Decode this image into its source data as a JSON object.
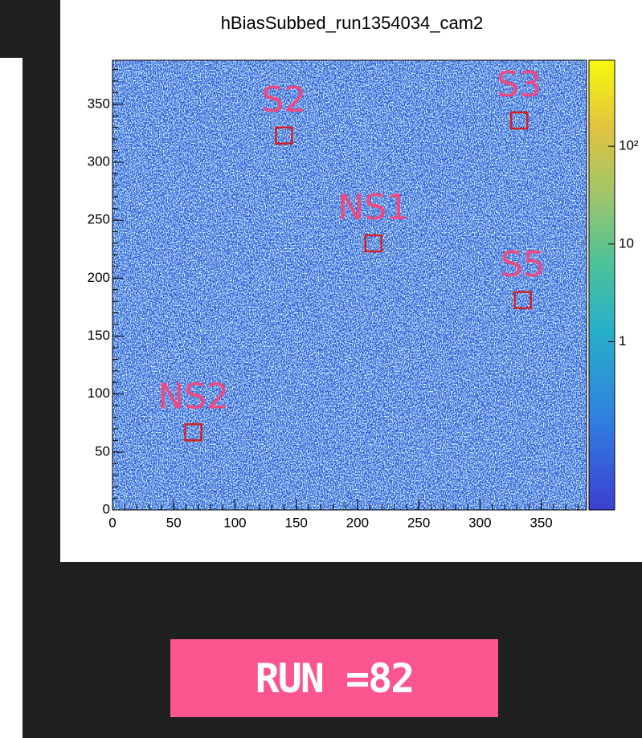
{
  "chart_data": {
    "type": "heatmap",
    "title": "hBiasSubbed_run1354034_cam2",
    "xlim": [
      0,
      387
    ],
    "ylim": [
      0,
      388
    ],
    "xticks": [
      0,
      50,
      100,
      150,
      200,
      250,
      300,
      350
    ],
    "yticks": [
      0,
      50,
      100,
      150,
      200,
      250,
      300,
      350
    ],
    "colorbar": {
      "log": true,
      "zlim": [
        0.019,
        760
      ],
      "zticks": [
        {
          "value": 1,
          "label": "1"
        },
        {
          "value": 10,
          "label": "10"
        },
        {
          "value": 100,
          "label": "10²"
        }
      ]
    },
    "annotations": [
      {
        "text": "S2",
        "x": 140,
        "y": 323
      },
      {
        "text": "S3",
        "x": 332,
        "y": 336
      },
      {
        "text": "NS1",
        "x": 213,
        "y": 230
      },
      {
        "text": "S5",
        "x": 335,
        "y": 181
      },
      {
        "text": "NS2",
        "x": 66,
        "y": 67
      }
    ]
  },
  "slide": {
    "run_label": "RUN =82"
  }
}
